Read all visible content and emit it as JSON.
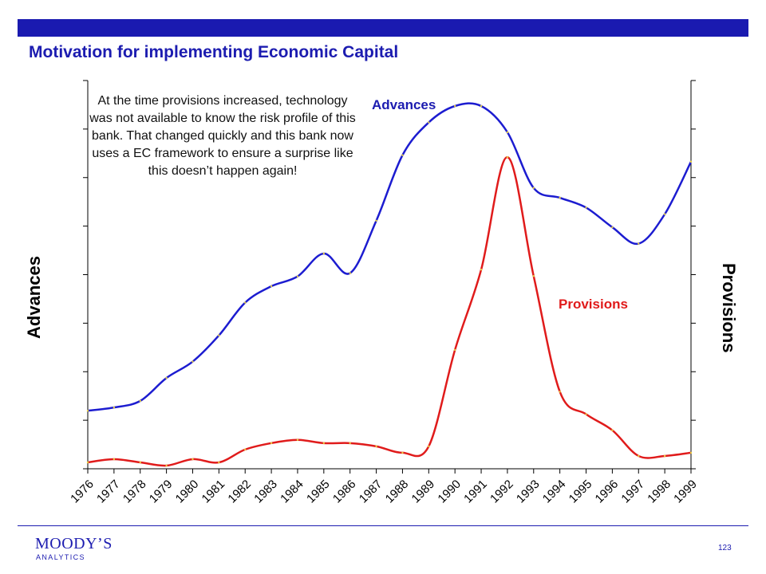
{
  "title": "Motivation for implementing Economic Capital",
  "annotation": "At the time provisions increased, technology was not available to know the risk profile of this bank. That changed quickly and this bank now uses a EC framework to ensure a surprise like this doesn’t happen again!",
  "logo": {
    "name": "MOODY’S",
    "sub": "ANALYTICS"
  },
  "page_number": "123",
  "colors": {
    "brand": "#1a1ab0",
    "advances": "#1c1cd0",
    "provisions": "#e01b1b"
  },
  "chart_data": {
    "type": "line",
    "title": "",
    "ylabel_left": "Advances",
    "ylabel_right": "Provisions",
    "x": [
      "1976",
      "1977",
      "1978",
      "1979",
      "1980",
      "1981",
      "1982",
      "1983",
      "1984",
      "1985",
      "1986",
      "1987",
      "1988",
      "1989",
      "1990",
      "1991",
      "1992",
      "1993",
      "1994",
      "1995",
      "1996",
      "1997",
      "1998",
      "1999"
    ],
    "series": [
      {
        "name": "Advances",
        "axis": "left",
        "values": [
          0.07,
          0.08,
          0.1,
          0.17,
          0.22,
          0.3,
          0.4,
          0.45,
          0.48,
          0.55,
          0.49,
          0.65,
          0.85,
          0.95,
          1.0,
          1.0,
          0.92,
          0.75,
          0.72,
          0.69,
          0.63,
          0.58,
          0.67,
          0.83
        ]
      },
      {
        "name": "Provisions",
        "axis": "right",
        "values": [
          0.0,
          0.01,
          0.0,
          -0.01,
          0.01,
          0.0,
          0.04,
          0.06,
          0.07,
          0.06,
          0.06,
          0.05,
          0.03,
          0.05,
          0.35,
          0.6,
          0.95,
          0.58,
          0.22,
          0.15,
          0.1,
          0.02,
          0.02,
          0.03
        ]
      }
    ],
    "ylim": [
      0,
      1
    ],
    "grid": false,
    "legend": "inline-labels"
  }
}
